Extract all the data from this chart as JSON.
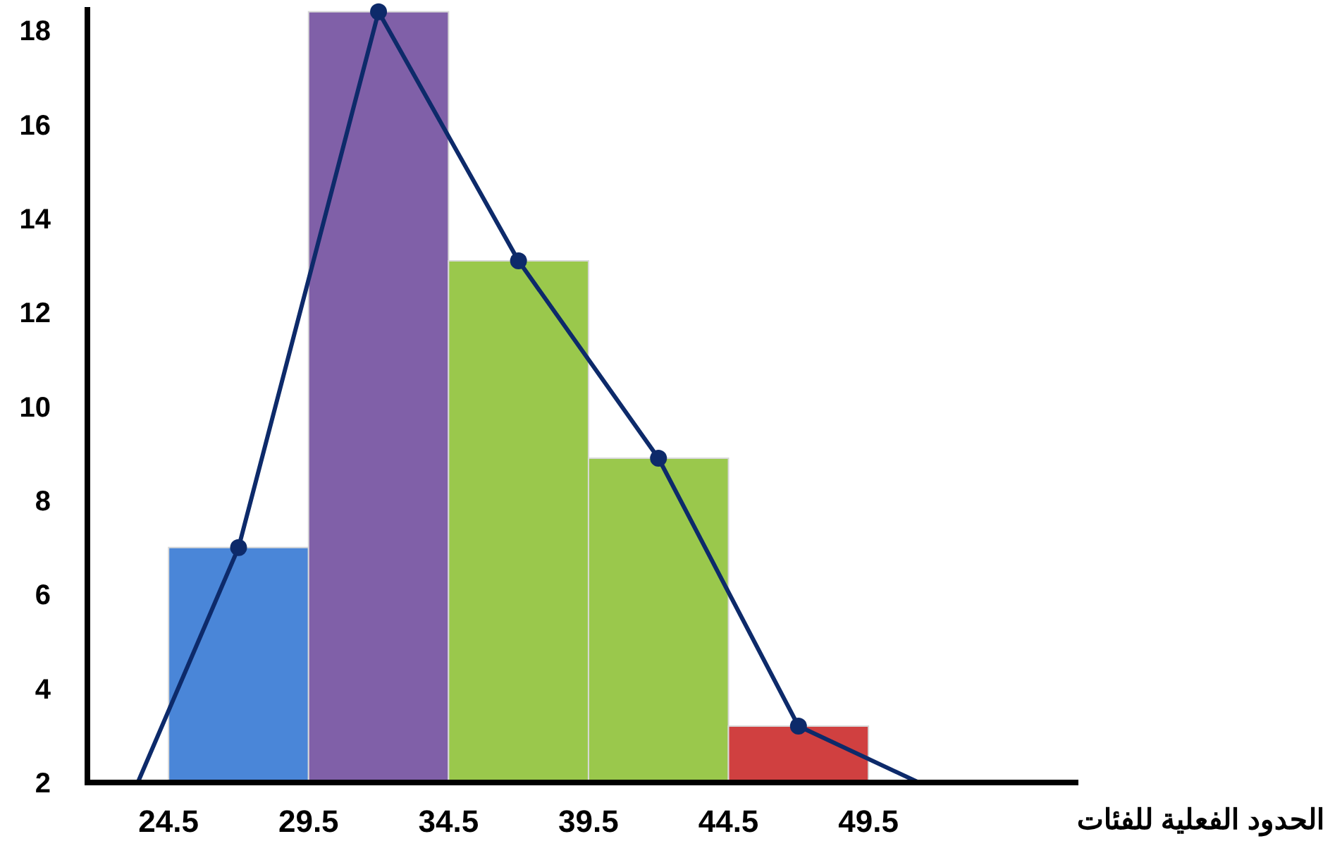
{
  "chart_data": {
    "type": "histogram",
    "bins": [
      24.5,
      29.5,
      34.5,
      39.5,
      44.5,
      49.5
    ],
    "values": [
      7,
      18.4,
      13.1,
      8.9,
      3.2
    ],
    "colors": [
      "#4a86d8",
      "#8060a8",
      "#9ac84c",
      "#9ac84c",
      "#d04040"
    ],
    "xlabel": "الحدود الفعلية للفئات",
    "xlim": [
      21.6,
      57
    ],
    "xticks": [
      24.5,
      29.5,
      34.5,
      39.5,
      44.5,
      49.5
    ],
    "ylim": [
      2,
      18.5
    ],
    "yticks": [
      2,
      4,
      6,
      8,
      10,
      12,
      14,
      16,
      18
    ],
    "grid": false,
    "series": [
      {
        "type": "line",
        "color": "#0d2a6a",
        "marker": "none",
        "x": [
          23.4,
          27,
          32,
          37,
          42,
          47,
          51.3
        ],
        "values": [
          2,
          7,
          18.4,
          13.1,
          8.9,
          3.2,
          2
        ]
      },
      {
        "type": "scatter",
        "color": "#0d2a6a",
        "marker": "circle",
        "x": [
          27,
          32,
          37,
          42,
          47
        ],
        "values": [
          7,
          18.4,
          13.1,
          8.9,
          3.2
        ]
      }
    ]
  }
}
